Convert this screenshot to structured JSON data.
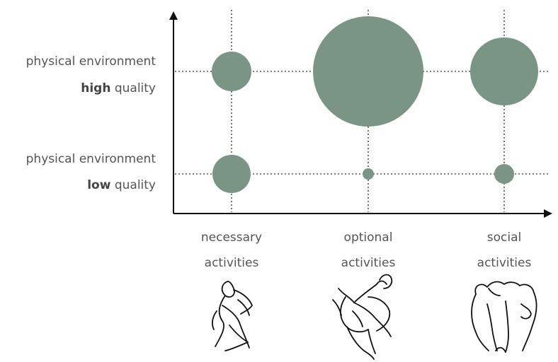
{
  "chart_data": {
    "type": "scatter",
    "categories": [
      "necessary activities",
      "optional activities",
      "social activities"
    ],
    "x_labels": [
      [
        "necessary",
        "activities"
      ],
      [
        "optional",
        "activities"
      ],
      [
        "social",
        "activities"
      ]
    ],
    "y_levels": [
      {
        "line1": "physical environment",
        "strong": "low",
        "rest": " quality"
      },
      {
        "line1": "physical environment",
        "strong": "high",
        "rest": " quality"
      }
    ],
    "series": [
      {
        "level": "low quality",
        "values": [
          27,
          8,
          14
        ]
      },
      {
        "level": "high quality",
        "values": [
          28,
          78,
          48
        ]
      }
    ],
    "grid": true,
    "colors": {
      "bubble": "#7a9585",
      "axis": "#111111",
      "grid": "#555555",
      "label": "#555555"
    },
    "icons": [
      "walking-figure-icon",
      "playing-figures-icon",
      "social-group-icon"
    ]
  }
}
